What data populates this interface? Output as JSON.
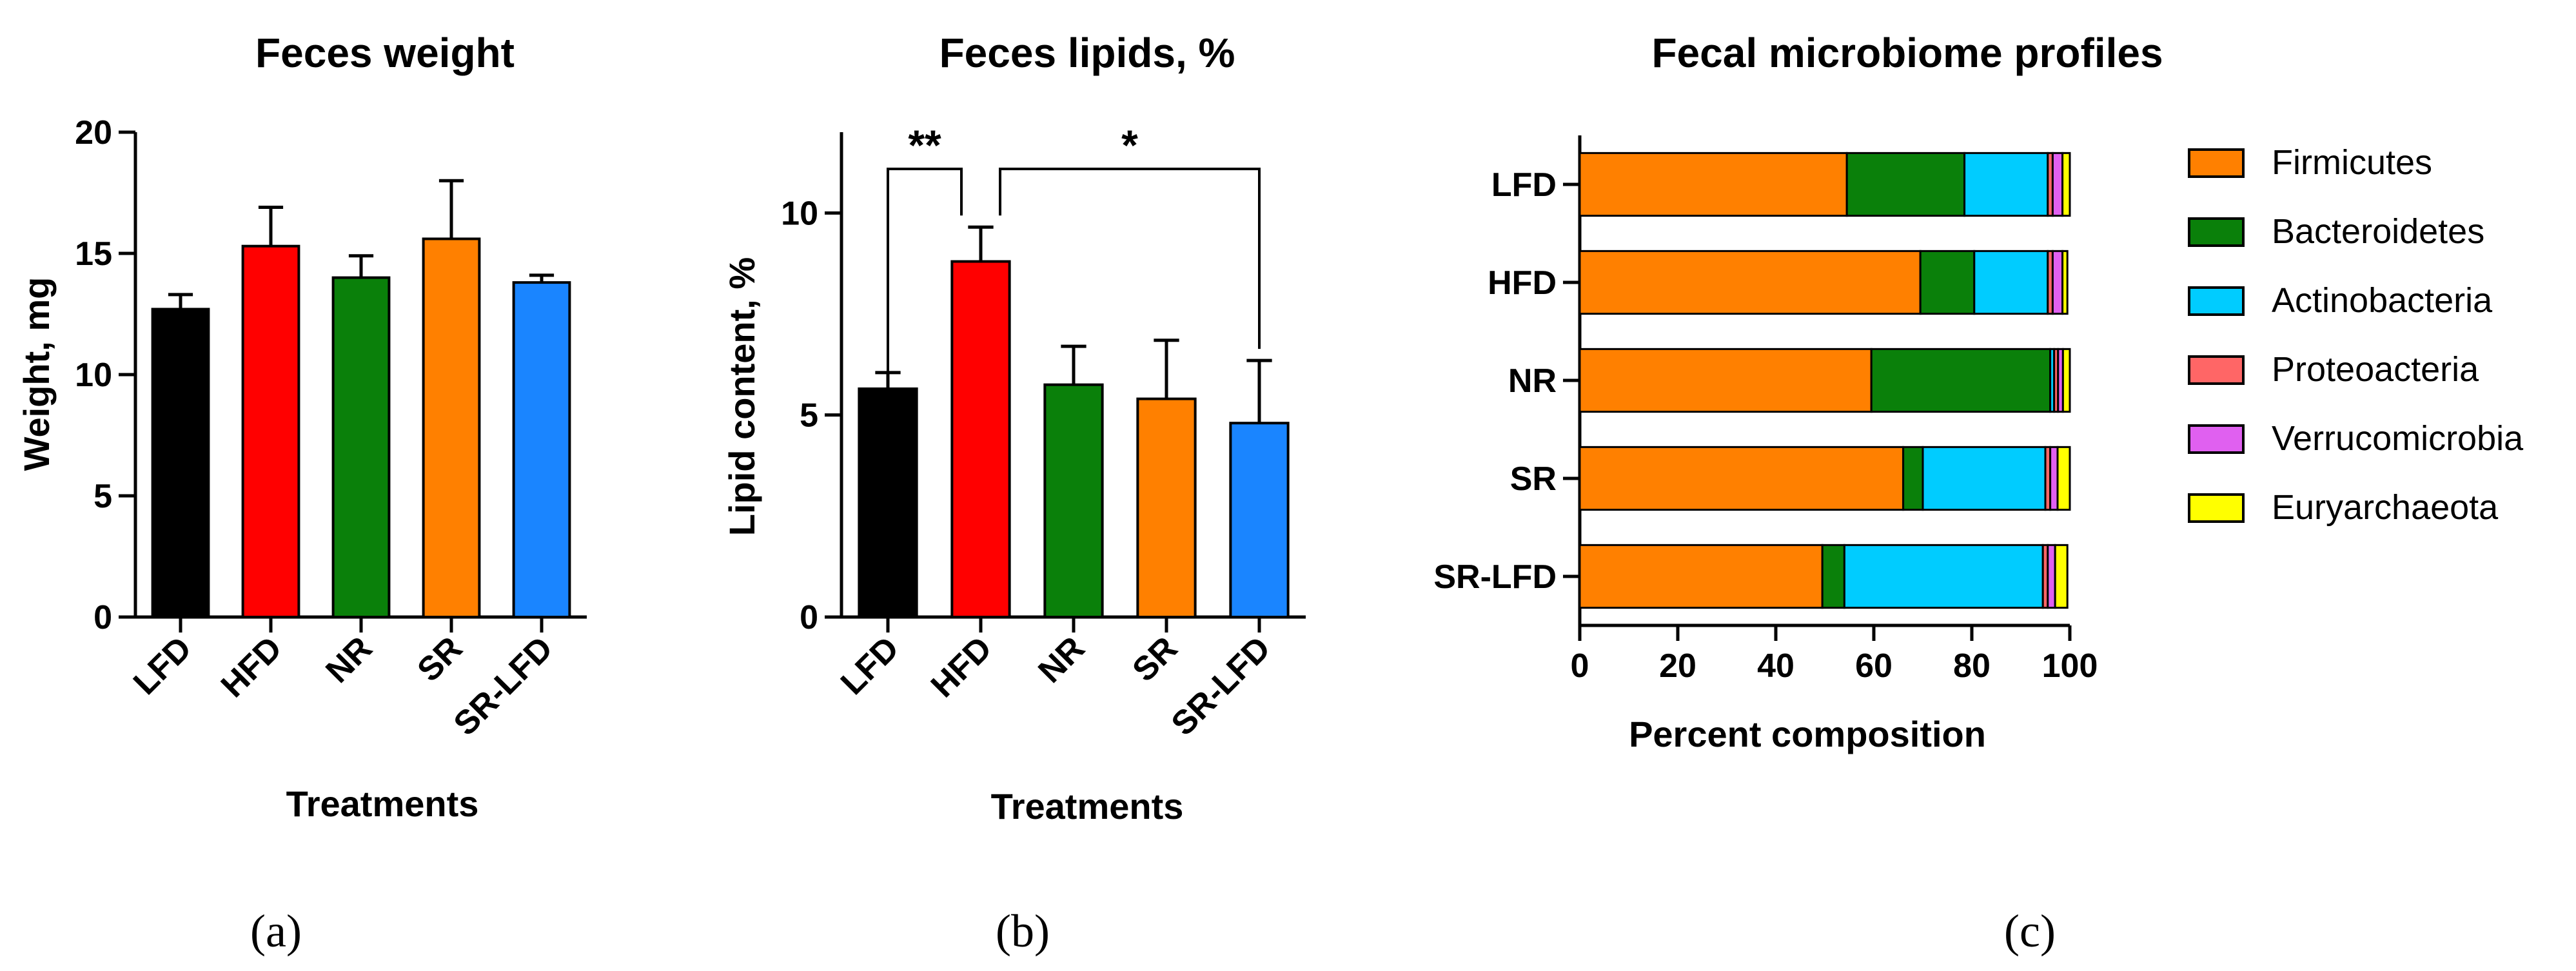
{
  "chart_data": [
    {
      "type": "bar",
      "title": "Feces weight",
      "xlabel": "Treatments",
      "ylabel": "Weight, mg",
      "ylim": [
        0,
        20
      ],
      "yticks": [
        "0",
        "5",
        "10",
        "15",
        "20"
      ],
      "categories": [
        "LFD",
        "HFD",
        "NR",
        "SR",
        "SR-LFD"
      ],
      "values": [
        12.7,
        15.3,
        14.0,
        15.6,
        13.8
      ],
      "errors": [
        0.6,
        1.6,
        0.9,
        2.4,
        0.3
      ],
      "colors": [
        "#000000",
        "#ff0000",
        "#0a800a",
        "#ff8000",
        "#1a85ff"
      ],
      "caption": "(a)"
    },
    {
      "type": "bar",
      "title": "Feces lipids, %",
      "xlabel": "Treatments",
      "ylabel": "Lipid content, %",
      "ylim": [
        0,
        12
      ],
      "yticks": [
        "0",
        "5",
        "10"
      ],
      "categories": [
        "LFD",
        "HFD",
        "NR",
        "SR",
        "SR-LFD"
      ],
      "values": [
        5.65,
        8.8,
        5.75,
        5.4,
        4.8
      ],
      "errors": [
        0.4,
        0.85,
        0.95,
        1.45,
        1.55
      ],
      "colors": [
        "#000000",
        "#ff0000",
        "#0a800a",
        "#ff8000",
        "#1a85ff"
      ],
      "significance": [
        {
          "from": "LFD",
          "to": "HFD",
          "label": "**"
        },
        {
          "from": "HFD",
          "to": "SR-LFD",
          "label": "*"
        }
      ],
      "caption": "(b)"
    },
    {
      "type": "bar",
      "orientation": "horizontal-stacked",
      "title": "Fecal microbiome profiles",
      "xlabel": "Percent composition",
      "ylabel": "",
      "xlim": [
        0,
        100
      ],
      "xticks": [
        "0",
        "20",
        "40",
        "60",
        "80",
        "100"
      ],
      "categories": [
        "LFD",
        "HFD",
        "NR",
        "SR",
        "SR-LFD"
      ],
      "series": [
        {
          "name": "Firmicutes",
          "color": "#ff8000",
          "values": [
            54.5,
            69.5,
            59.5,
            66.0,
            49.5
          ]
        },
        {
          "name": "Bacteroidetes",
          "color": "#0a800a",
          "values": [
            24.0,
            11.0,
            36.5,
            4.0,
            4.5
          ]
        },
        {
          "name": "Actinobacteria",
          "color": "#00ccff",
          "values": [
            17.0,
            15.0,
            0.8,
            25.0,
            40.5
          ]
        },
        {
          "name": "Proteoacteria",
          "color": "#ff6666",
          "values": [
            1.0,
            1.0,
            0.8,
            1.0,
            1.0
          ]
        },
        {
          "name": "Verrucomicrobia",
          "color": "#e060f0",
          "values": [
            2.0,
            2.0,
            1.0,
            1.5,
            1.5
          ]
        },
        {
          "name": "Euryarchaeota",
          "color": "#ffff00",
          "values": [
            1.5,
            1.0,
            1.4,
            2.5,
            2.5
          ]
        }
      ],
      "caption": "(c)"
    }
  ]
}
